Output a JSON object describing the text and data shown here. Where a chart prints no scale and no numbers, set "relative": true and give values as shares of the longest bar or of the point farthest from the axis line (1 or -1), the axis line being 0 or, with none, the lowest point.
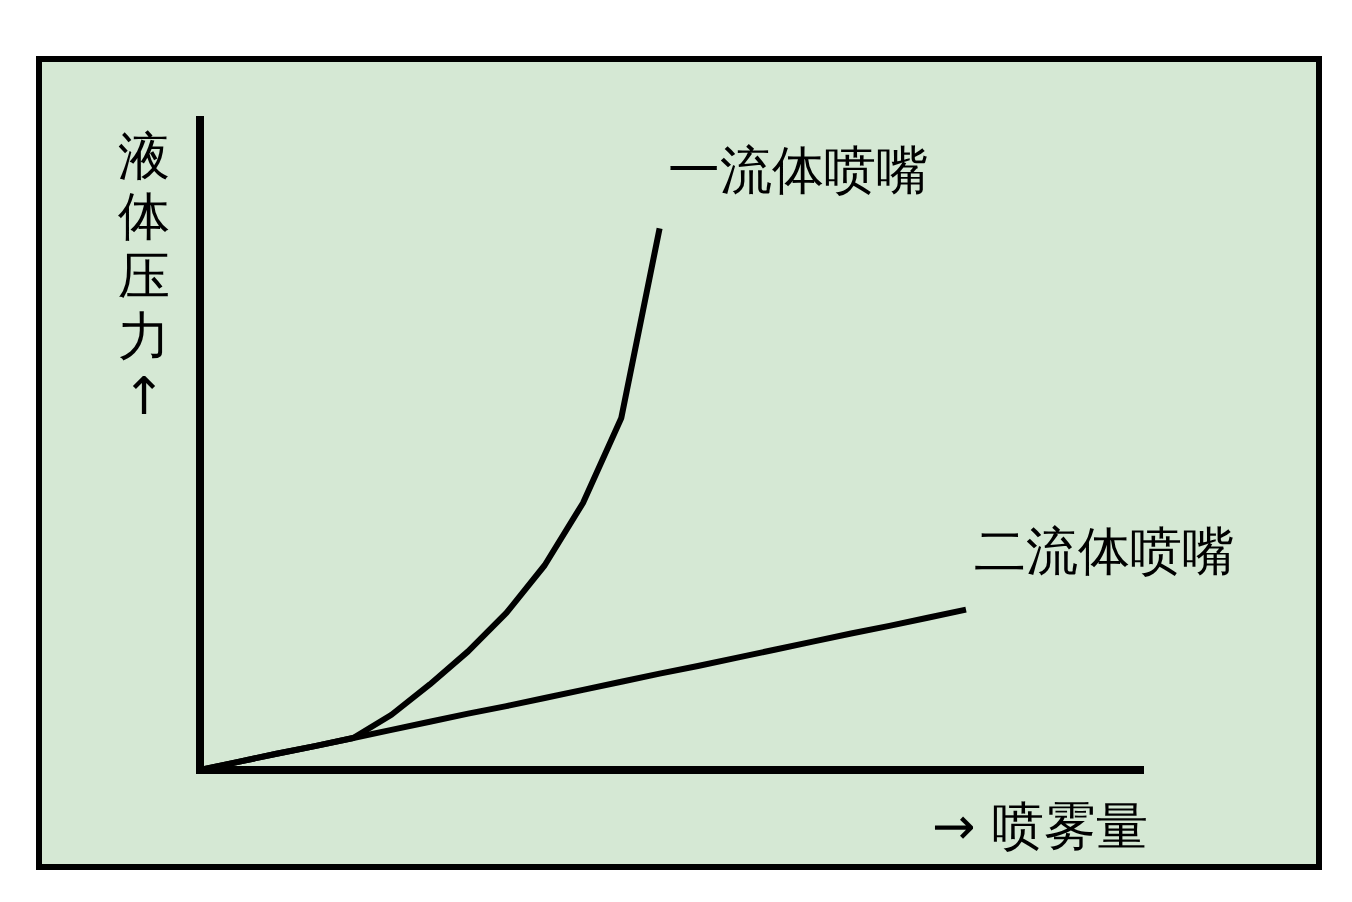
{
  "chart_data": {
    "type": "line",
    "relative": true,
    "xlabel": "→ 喷雾量",
    "ylabel": "液体压力↑",
    "marker": "none",
    "legend": false,
    "categories": [
      null,
      null,
      null,
      null,
      null,
      null,
      null,
      null,
      null,
      null,
      null,
      null,
      null,
      null,
      null,
      null,
      null,
      null,
      null,
      null,
      null
    ],
    "series": [
      {
        "name": "一流体喷嘴",
        "color": "#000000",
        "values": [
          0,
          0.015,
          0.03,
          0.044,
          0.059,
          0.102,
          0.158,
          0.219,
          0.29,
          0.378,
          0.493,
          0.65,
          1,
          null,
          null,
          null,
          null,
          null,
          null,
          null,
          null
        ]
      },
      {
        "name": "二流体喷嘴",
        "color": "#000000",
        "values": [
          0,
          0.015,
          0.03,
          0.044,
          0.059,
          0.074,
          0.089,
          0.104,
          0.118,
          0.133,
          0.148,
          0.163,
          0.178,
          0.192,
          0.207,
          0.222,
          0.237,
          0.252,
          0.266,
          0.281,
          0.296
        ]
      }
    ]
  }
}
